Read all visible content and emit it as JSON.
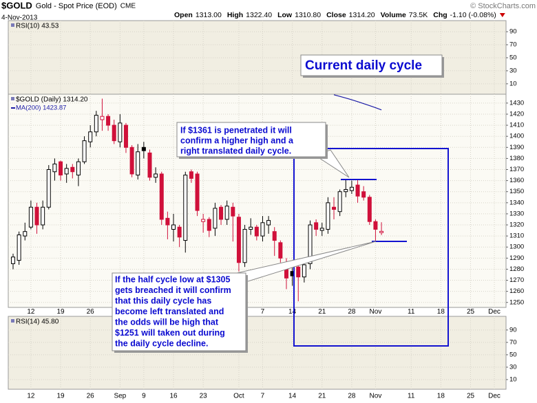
{
  "chart_data": {
    "type": "candlestick",
    "title": "$GOLD",
    "subtitle": "Gold - Spot Price (EOD)",
    "exchange": "CME",
    "date": "4-Nov-2013",
    "source": "© StockCharts.com",
    "quote": [
      {
        "label": "Open",
        "value": "1313.00"
      },
      {
        "label": "High",
        "value": "1322.40"
      },
      {
        "label": "Low",
        "value": "1310.80"
      },
      {
        "label": "Close",
        "value": "1314.20"
      },
      {
        "label": "Volume",
        "value": "73.5K"
      },
      {
        "label": "Chg",
        "value": "-1.10 (-0.08%)"
      }
    ],
    "price_label": "$GOLD (Daily) 1314.20",
    "categories": [
      null,
      null,
      null,
      "12",
      null,
      null,
      null,
      null,
      "19",
      null,
      null,
      null,
      null,
      "26",
      null,
      null,
      null,
      null,
      "Sep",
      null,
      null,
      null,
      "9",
      null,
      null,
      null,
      null,
      "16",
      null,
      null,
      null,
      null,
      "23",
      null,
      null,
      null,
      null,
      null,
      "Oct",
      null,
      null,
      null,
      "7",
      null,
      null,
      null,
      null,
      "14",
      null,
      null,
      null,
      null,
      "21",
      null,
      null,
      null,
      null,
      "28",
      null,
      null,
      null,
      "Nov",
      null,
      null,
      null,
      null,
      null,
      "11",
      null,
      null,
      null,
      null,
      "18",
      null,
      null,
      null,
      null,
      "25",
      null,
      null,
      null,
      "Dec",
      null
    ],
    "open": [
      1285,
      1288,
      1310,
      1318,
      1336,
      1320,
      1336,
      1368,
      1377,
      1366,
      1372,
      1365,
      1377,
      1395,
      1404,
      1415,
      1418,
      1410,
      1395,
      1410,
      1390,
      1365,
      1390,
      1385,
      1363,
      1366,
      1326,
      1316,
      1318,
      1306,
      1368,
      1366,
      1323,
      1325,
      1317,
      1336,
      1325,
      1336,
      1327,
      1286,
      1316,
      1318,
      1310,
      1320,
      1314,
      1304,
      1285,
      1278,
      1282,
      1273,
      1285,
      1322,
      1315,
      1316,
      1336,
      1332,
      1350,
      1351,
      1356,
      1350,
      1345,
      1323,
      1313,
      null,
      null,
      null,
      null,
      null,
      null,
      null,
      null,
      null,
      null,
      null,
      null,
      null,
      null,
      null,
      null,
      null,
      null,
      null,
      null
    ],
    "high": [
      1294,
      1314,
      1322,
      1342,
      1340,
      1342,
      1374,
      1380,
      1378,
      1375,
      1375,
      1380,
      1400,
      1410,
      1423,
      1434,
      1420,
      1415,
      1420,
      1412,
      1392,
      1393,
      1395,
      1388,
      1372,
      1368,
      1332,
      1330,
      1320,
      1368,
      1370,
      1368,
      1330,
      1327,
      1340,
      1338,
      1342,
      1340,
      1330,
      1320,
      1326,
      1320,
      1328,
      1328,
      1318,
      1306,
      1290,
      1282,
      1285,
      1290,
      1324,
      1325,
      1322,
      1345,
      1345,
      1352,
      1361,
      1360,
      1361,
      1355,
      1347,
      1325,
      1322.4,
      null,
      null,
      null,
      null,
      null,
      null,
      null,
      null,
      null,
      null,
      null,
      null,
      null,
      null,
      null,
      null,
      null,
      null,
      null,
      null
    ],
    "low": [
      1280,
      1284,
      1306,
      1316,
      1312,
      1316,
      1334,
      1360,
      1360,
      1358,
      1362,
      1355,
      1375,
      1390,
      1400,
      1405,
      1405,
      1393,
      1390,
      1385,
      1363,
      1361,
      1380,
      1360,
      1358,
      1320,
      1307,
      1305,
      1300,
      1295,
      1358,
      1328,
      1313,
      1309,
      1310,
      1320,
      1320,
      1305,
      1278,
      1282,
      1311,
      1306,
      1305,
      1312,
      1292,
      1286,
      1262,
      1265,
      1251,
      1268,
      1280,
      1310,
      1310,
      1312,
      1325,
      1328,
      1345,
      1348,
      1340,
      1342,
      1320,
      1305,
      1310.8,
      null,
      null,
      null,
      null,
      null,
      null,
      null,
      null,
      null,
      null,
      null,
      null,
      null,
      null,
      null,
      null,
      null,
      null,
      null,
      null
    ],
    "close": [
      1291,
      1311,
      1314,
      1336,
      1320,
      1336,
      1370,
      1375,
      1365,
      1371,
      1368,
      1377,
      1396,
      1404,
      1419,
      1418,
      1410,
      1396,
      1412,
      1390,
      1366,
      1386,
      1387,
      1363,
      1366,
      1325,
      1320,
      1320,
      1309,
      1365,
      1362,
      1333,
      1325,
      1315,
      1335,
      1325,
      1337,
      1328,
      1286,
      1316,
      1318,
      1310,
      1322,
      1324,
      1306,
      1290,
      1272,
      1274,
      1273,
      1284,
      1320,
      1316,
      1317,
      1340,
      1334,
      1350,
      1352,
      1354,
      1346,
      1345,
      1323,
      1316,
      1314.2,
      null,
      null,
      null,
      null,
      null,
      null,
      null,
      null,
      null,
      null,
      null,
      null,
      null,
      null,
      null,
      null,
      null,
      null,
      null,
      null
    ],
    "up_color": "#000000",
    "down_color": "#d0103a",
    "ma": {
      "label": "MA(200) 1423.87",
      "color": "#1a1aa6",
      "values": [
        null,
        null,
        null,
        null,
        null,
        null,
        null,
        null,
        null,
        null,
        null,
        null,
        null,
        null,
        null,
        null,
        null,
        null,
        null,
        null,
        null,
        null,
        null,
        null,
        null,
        null,
        null,
        null,
        null,
        null,
        null,
        null,
        null,
        null,
        null,
        null,
        null,
        null,
        null,
        null,
        null,
        null,
        null,
        null,
        null,
        null,
        null,
        null,
        null,
        null,
        null,
        null,
        null,
        null,
        1437.5,
        1436,
        1434.5,
        1433,
        1431.3,
        1429.5,
        1427.7,
        1425.8,
        1423.87,
        null,
        null,
        null,
        null,
        null,
        null,
        null,
        null,
        null,
        null,
        null,
        null,
        null,
        null,
        null,
        null,
        null,
        null,
        null,
        null
      ]
    },
    "ylim": [
      1245.5,
      1438
    ],
    "yticks": [
      1250,
      1260,
      1270,
      1280,
      1290,
      1300,
      1310,
      1320,
      1330,
      1340,
      1350,
      1360,
      1370,
      1380,
      1390,
      1400,
      1410,
      1420,
      1430
    ],
    "grid": true,
    "rsi_top": {
      "label": "RSI(10) 43.53",
      "ylim": [
        -6,
        107
      ],
      "yticks": [
        10,
        30,
        50,
        70,
        90
      ]
    },
    "rsi_bottom": {
      "label": "RSI(14) 45.80",
      "ylim": [
        -5.6,
        112
      ],
      "yticks": [
        10,
        30,
        50,
        70,
        90
      ]
    },
    "annotations": [
      {
        "lines": [
          "Current daily cycle"
        ]
      },
      {
        "lines": [
          "If $1361 is penetrated it will",
          "confirm a higher high and a",
          "right translated daily cycle."
        ]
      },
      {
        "lines": [
          "If the half cycle low at $1305",
          "gets breached it will confirm",
          "that this daily cycle has",
          "become left translated and",
          "the odds will be high that",
          "$1251 will taken out during",
          "the daily cycle decline."
        ]
      }
    ]
  }
}
